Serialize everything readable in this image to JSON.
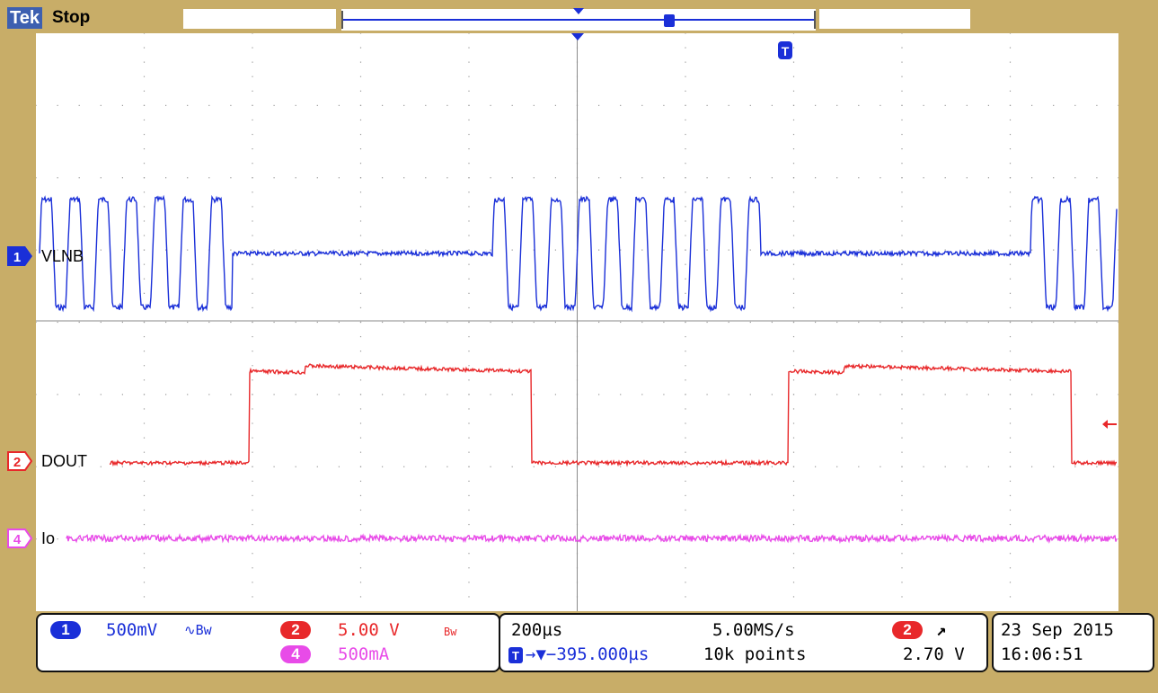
{
  "header": {
    "brand": "Tek",
    "acquisition_status": "Stop",
    "trigger_marker": "T"
  },
  "channels": [
    {
      "id": "1",
      "label": "VLNB",
      "color": "#1a2fd8"
    },
    {
      "id": "2",
      "label": "DOUT",
      "color": "#e8282a"
    },
    {
      "id": "4",
      "label": "Io",
      "color": "#e84be8"
    }
  ],
  "readouts": {
    "ch1_scale": "500mV",
    "ch1_bw": "∿Bw",
    "ch2_scale": "5.00 V",
    "ch2_bw": "Bw",
    "ch4_scale": "500mA",
    "timebase": "200µs",
    "sample_rate": "5.00MS/s",
    "trigger_offset": "→▼−395.000µs",
    "record_length": "10k points",
    "trigger_source": "2",
    "trigger_slope": "↗",
    "trigger_level": "2.70 V",
    "date": "23 Sep  2015",
    "time": "16:06:51"
  },
  "colors": {
    "background": "#c8ad68",
    "screen": "#ffffff",
    "ch1": "#1a2fd8",
    "ch2": "#e8282a",
    "ch4": "#e84be8",
    "grid": "#9a9a9a"
  }
}
